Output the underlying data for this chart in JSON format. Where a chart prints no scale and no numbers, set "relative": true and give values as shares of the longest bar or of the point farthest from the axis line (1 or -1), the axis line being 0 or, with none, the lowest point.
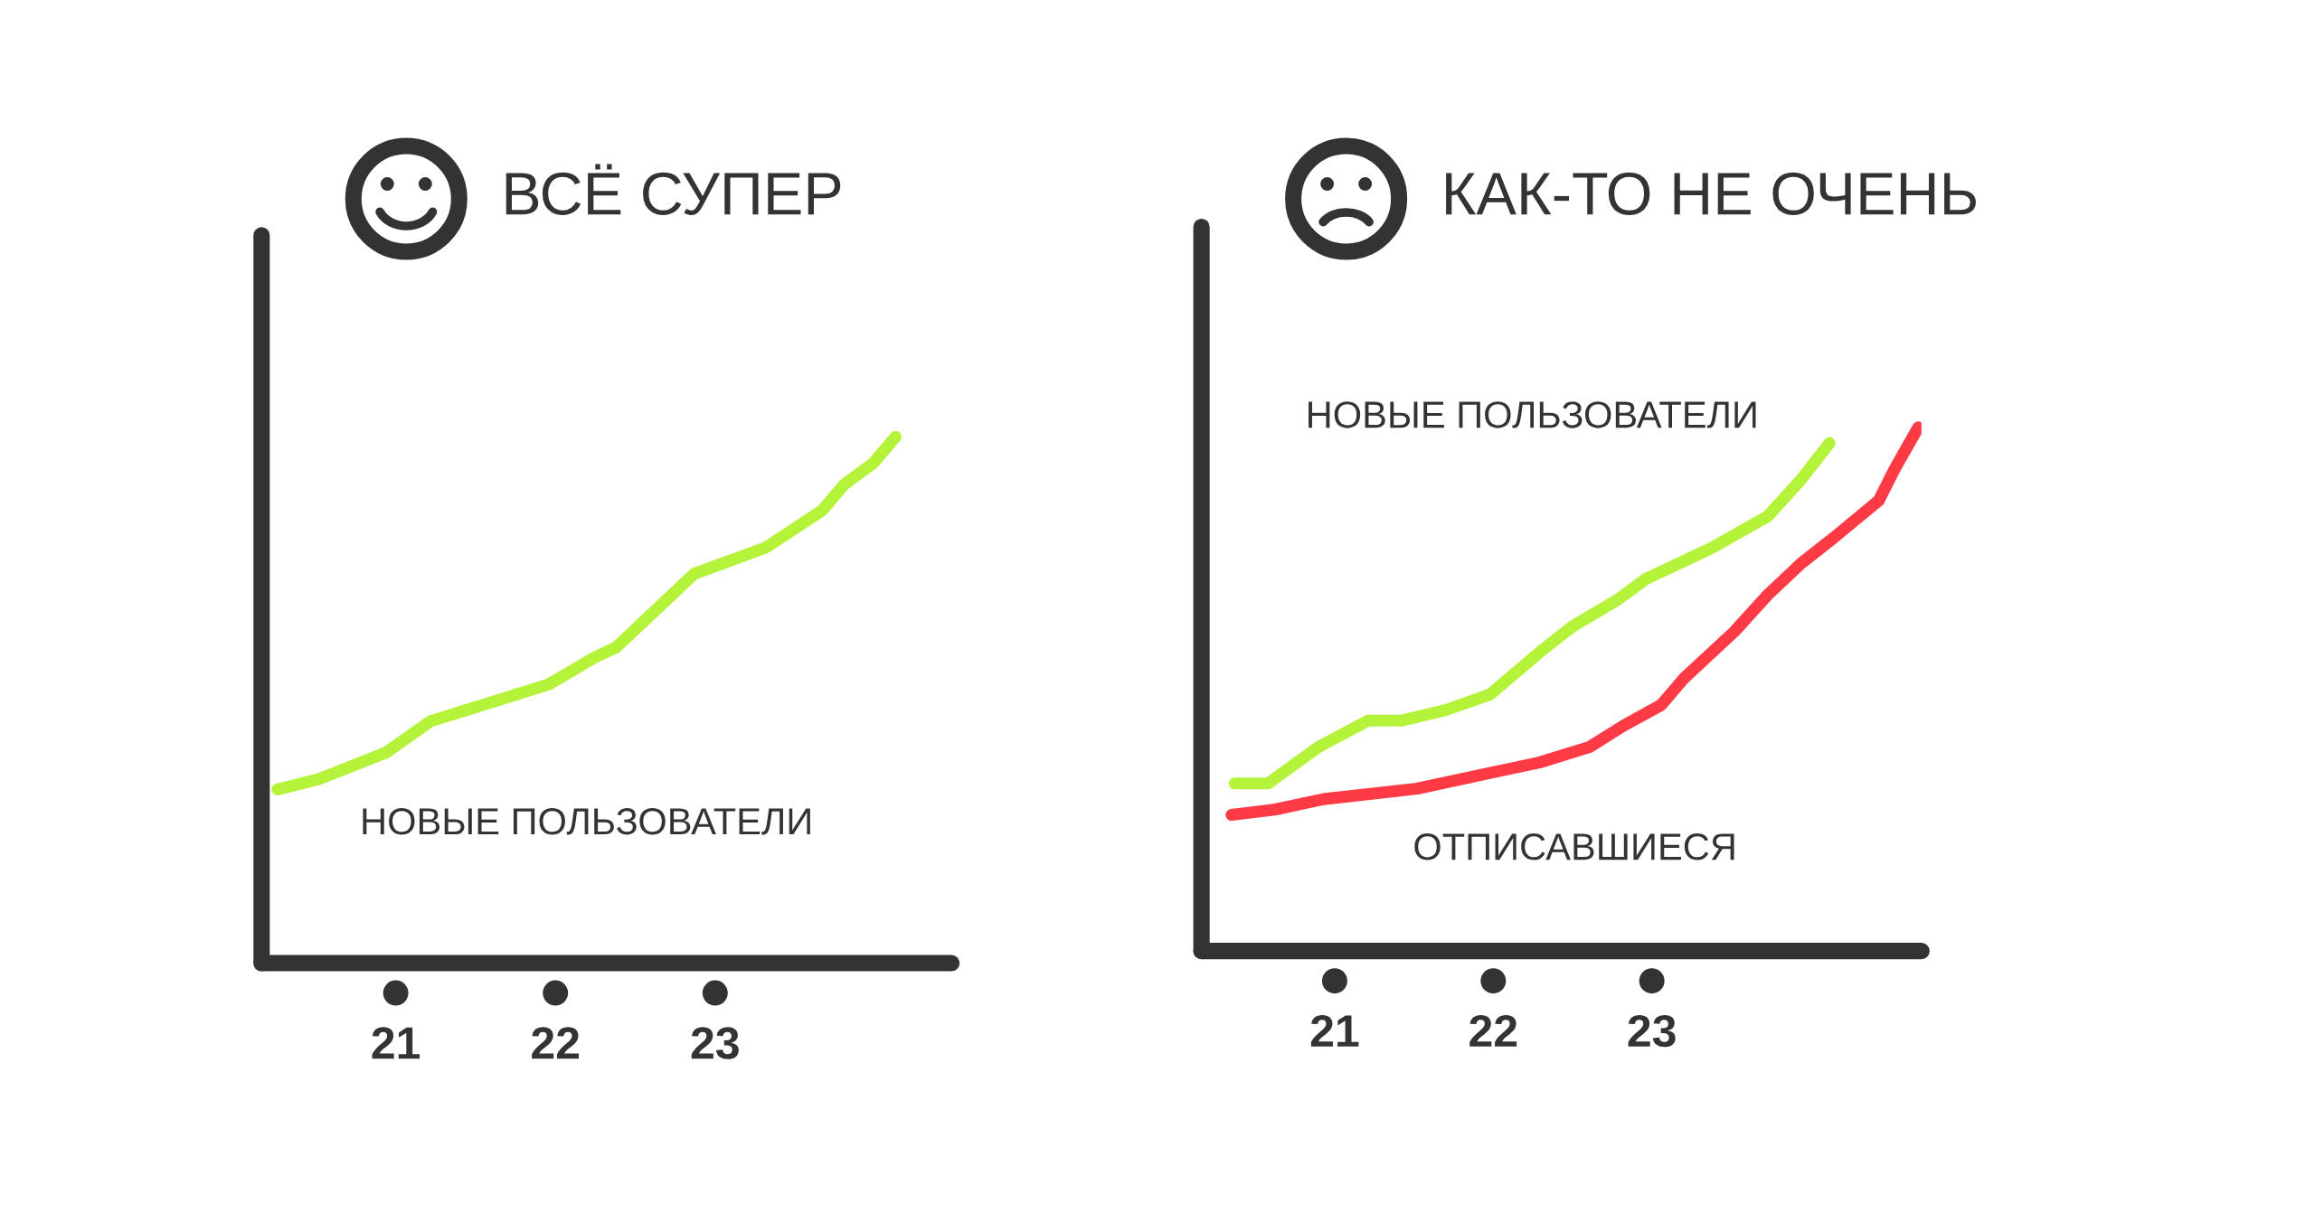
{
  "chart_data": [
    {
      "type": "line",
      "title": "ВСЁ СУПЕР",
      "relative": true,
      "xlim": [
        20.16,
        24.48
      ],
      "xticks": [
        21,
        22,
        23
      ],
      "tick_labels": "x",
      "series": [
        {
          "name": "НОВЫЕ ПОЛЬЗОВАТЕЛИ",
          "color": "#b5f23a",
          "x": [
            20.26,
            20.52,
            20.94,
            21.22,
            21.54,
            21.96,
            22.24,
            22.38,
            22.66,
            22.87,
            23.32,
            23.67,
            23.81,
            23.99,
            24.13
          ],
          "values": [
            0.33,
            0.35,
            0.4,
            0.46,
            0.49,
            0.53,
            0.58,
            0.6,
            0.68,
            0.74,
            0.79,
            0.86,
            0.91,
            0.95,
            1.0
          ]
        }
      ]
    },
    {
      "type": "line",
      "title": "КАК-ТО НЕ ОЧЕНЬ",
      "relative": true,
      "xlim": [
        20.16,
        24.7
      ],
      "xticks": [
        21,
        22,
        23
      ],
      "tick_labels": "x",
      "series": [
        {
          "name": "НОВЫЕ ПОЛЬЗОВАТЕЛИ",
          "color": "#b5f23a",
          "x": [
            20.37,
            20.58,
            20.9,
            21.21,
            21.42,
            21.7,
            21.98,
            22.29,
            22.5,
            22.78,
            22.96,
            23.38,
            23.73,
            23.94,
            24.12
          ],
          "values": [
            0.32,
            0.32,
            0.39,
            0.44,
            0.44,
            0.46,
            0.49,
            0.57,
            0.62,
            0.67,
            0.71,
            0.77,
            0.83,
            0.9,
            0.97
          ]
        },
        {
          "name": "ОТПИСАВШИЕСЯ",
          "color": "#fe3b45",
          "x": [
            20.35,
            20.62,
            20.93,
            21.52,
            21.98,
            22.29,
            22.61,
            22.82,
            23.06,
            23.2,
            23.52,
            23.73,
            23.94,
            24.15,
            24.43,
            24.53,
            24.68
          ],
          "values": [
            0.26,
            0.27,
            0.29,
            0.31,
            0.34,
            0.36,
            0.39,
            0.43,
            0.47,
            0.52,
            0.61,
            0.68,
            0.74,
            0.79,
            0.86,
            0.92,
            1.0
          ]
        }
      ]
    }
  ]
}
